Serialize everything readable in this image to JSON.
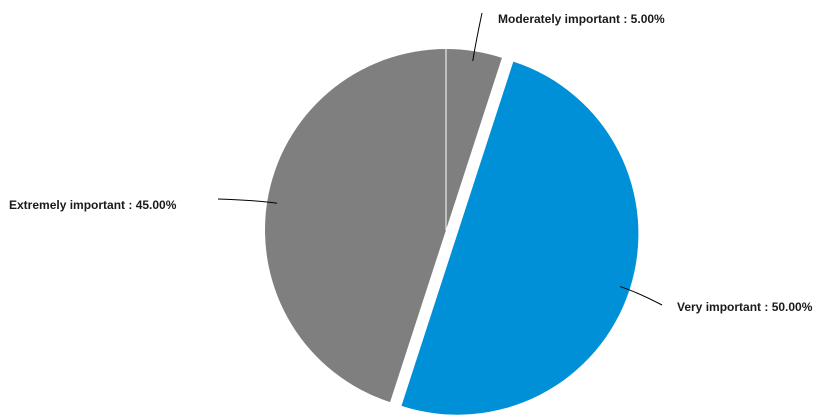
{
  "chart_data": {
    "type": "pie",
    "slices": [
      {
        "name": "Moderately important",
        "value": 5.0,
        "label": "Moderately important : 5.00%",
        "color": "#7f7f7f",
        "exploded": false
      },
      {
        "name": "Very important",
        "value": 50.0,
        "label": "Very important : 50.00%",
        "color": "#0090d8",
        "exploded": true
      },
      {
        "name": "Extremely important",
        "value": 45.0,
        "label": "Extremely important : 45.00%",
        "color": "#7f7f7f",
        "exploded": false
      }
    ],
    "start_angle": "12 o'clock",
    "direction": "clockwise",
    "legend": "none"
  }
}
